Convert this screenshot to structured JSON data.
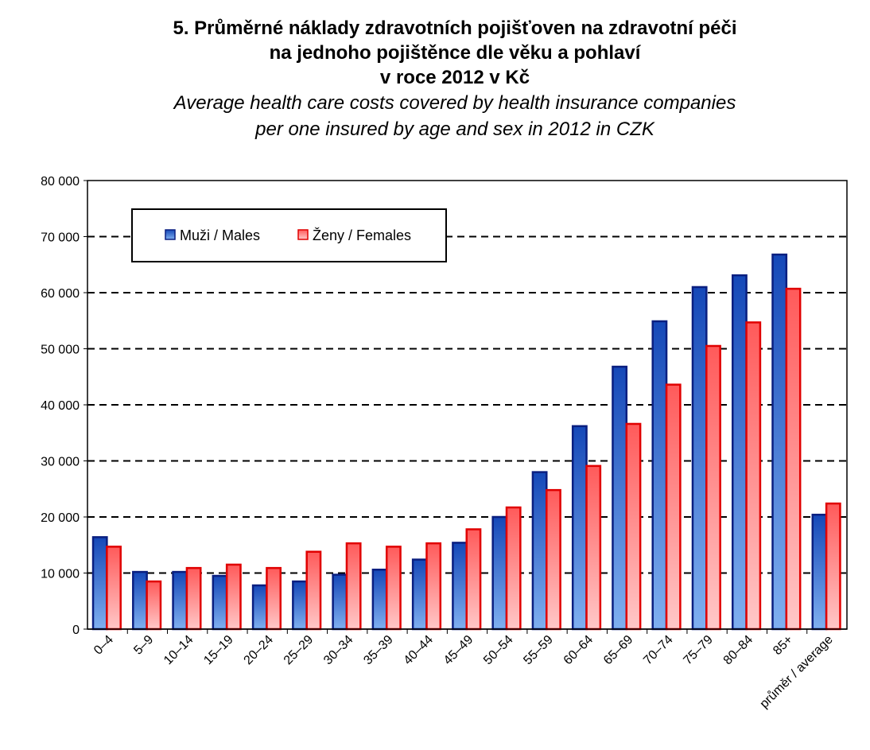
{
  "chart_data": {
    "type": "bar",
    "title_cz": [
      "5. Průměrné náklady zdravotních pojišťoven na zdravotní péči",
      "na jednoho pojištěnce dle věku a pohlaví",
      "v roce 2012 v Kč"
    ],
    "title_en": [
      "Average health care costs covered by health insurance companies",
      "per one insured by age and sex in 2012 in CZK"
    ],
    "categories": [
      "0–4",
      "5–9",
      "10–14",
      "15–19",
      "20–24",
      "25–29",
      "30–34",
      "35–39",
      "40–44",
      "45–49",
      "50–54",
      "55–59",
      "60–64",
      "65–69",
      "70–74",
      "75–79",
      "80–84",
      "85+",
      "průměr / average"
    ],
    "series": [
      {
        "name": "Muži / Males",
        "color": "#1F5FC8",
        "values": [
          16400,
          10200,
          10200,
          9500,
          7800,
          8500,
          9700,
          10600,
          12400,
          15400,
          20000,
          28000,
          36200,
          46800,
          54900,
          61000,
          63100,
          66800,
          20400
        ]
      },
      {
        "name": "Ženy / Females",
        "color": "#FF6E6E",
        "values": [
          14700,
          8500,
          10900,
          11500,
          10900,
          13800,
          15300,
          14700,
          15300,
          17800,
          21700,
          24800,
          29100,
          36600,
          43600,
          50500,
          54700,
          60700,
          22400
        ]
      }
    ],
    "yticks": [
      "80 000",
      "70 000",
      "60 000",
      "50 000",
      "40 000",
      "30 000",
      "20 000",
      "10 000",
      "0"
    ],
    "ylim": [
      0,
      80000
    ],
    "grid": true,
    "legend_position": "top-left"
  }
}
